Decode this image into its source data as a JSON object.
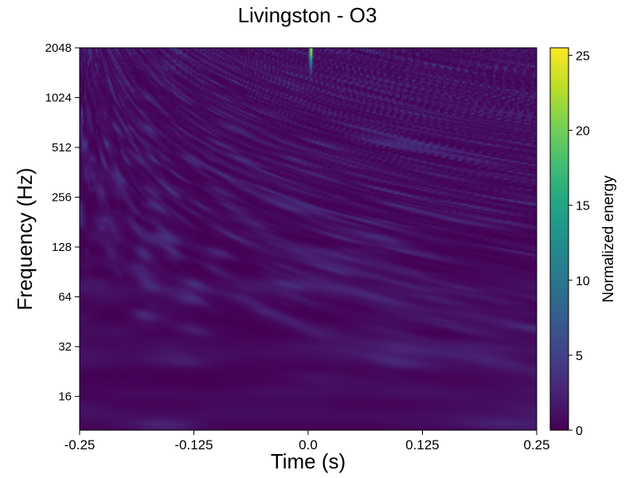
{
  "chart_data": {
    "type": "heatmap",
    "title": "Livingston - O3",
    "xlabel": "Time (s)",
    "ylabel": "Frequency (Hz)",
    "xlim": [
      -0.25,
      0.25
    ],
    "ylim": [
      10,
      2048
    ],
    "yscale": "log2",
    "xticks": [
      {
        "value": -0.25,
        "label": "-0.25"
      },
      {
        "value": -0.125,
        "label": "-0.125"
      },
      {
        "value": 0.0,
        "label": "0.0"
      },
      {
        "value": 0.125,
        "label": "0.125"
      },
      {
        "value": 0.25,
        "label": "0.25"
      }
    ],
    "yticks": [
      {
        "value": 16,
        "label": "16"
      },
      {
        "value": 32,
        "label": "32"
      },
      {
        "value": 64,
        "label": "64"
      },
      {
        "value": 128,
        "label": "128"
      },
      {
        "value": 256,
        "label": "256"
      },
      {
        "value": 512,
        "label": "512"
      },
      {
        "value": 1024,
        "label": "1024"
      },
      {
        "value": 2048,
        "label": "2048"
      }
    ],
    "colormap": "viridis",
    "colorbar": {
      "label": "Normalized energy",
      "range": [
        0,
        25.5
      ],
      "ticks": [
        {
          "value": 0,
          "label": "0"
        },
        {
          "value": 5,
          "label": "5"
        },
        {
          "value": 10,
          "label": "10"
        },
        {
          "value": 15,
          "label": "15"
        },
        {
          "value": 20,
          "label": "20"
        },
        {
          "value": 25,
          "label": "25"
        }
      ]
    },
    "peak": {
      "time": 0.003,
      "frequency": 2048,
      "energy": 25.5
    },
    "grid": false
  }
}
